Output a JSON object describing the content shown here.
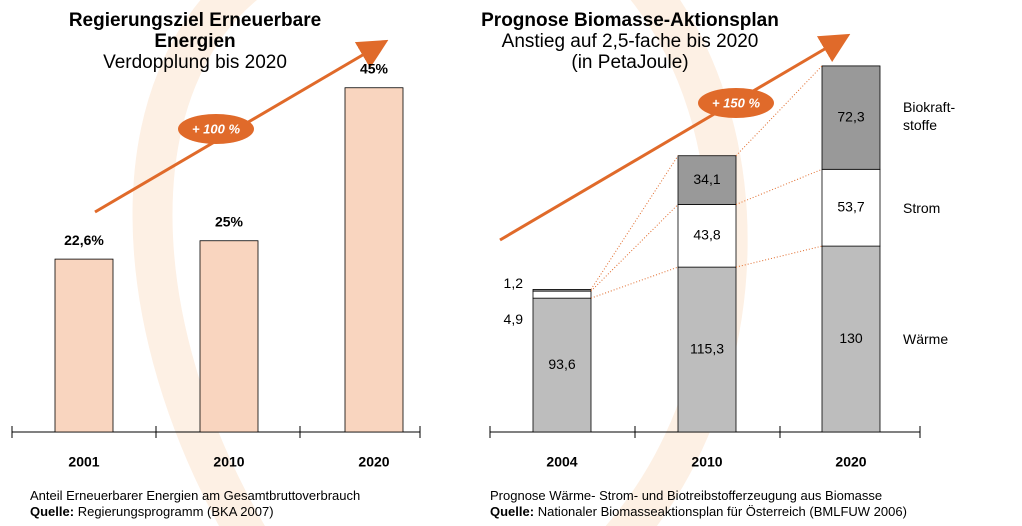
{
  "chart_data": [
    {
      "type": "bar",
      "title": "Regierungsziel Erneuerbare Energien",
      "subtitle": "Verdopplung bis 2020",
      "categories": [
        "2001",
        "2010",
        "2020"
      ],
      "values": [
        22.6,
        25,
        45
      ],
      "value_labels": [
        "22,6%",
        "25%",
        "45%"
      ],
      "color": "#f9d5bf",
      "annotation": "+ 100 %",
      "footnote": "Anteil Erneuerbarer Energien am Gesamtbruttoverbrauch",
      "source_label": "Quelle:",
      "source": "Regierungsprogramm (BKA 2007)"
    },
    {
      "type": "stacked_bar",
      "title": "Prognose Biomasse-Aktionsplan",
      "subtitle": "Anstieg auf 2,5-fache bis 2020",
      "unit_label": "(in PetaJoule)",
      "categories": [
        "2004",
        "2010",
        "2020"
      ],
      "series": [
        {
          "name": "Wärme",
          "color": "#bdbdbd",
          "values": [
            93.6,
            115.3,
            130
          ],
          "value_labels": [
            "93,6",
            "115,3",
            "130"
          ]
        },
        {
          "name": "Strom",
          "color": "#ffffff",
          "values": [
            4.9,
            43.8,
            53.7
          ],
          "value_labels": [
            "4,9",
            "43,8",
            "53,7"
          ]
        },
        {
          "name": "Biokraft-stoffe",
          "color": "#999999",
          "values": [
            1.2,
            34.1,
            72.3
          ],
          "value_labels": [
            "1,2",
            "34,1",
            "72,3"
          ]
        }
      ],
      "annotation": "+ 150 %",
      "footnote": "Prognose Wärme- Strom- und Biotreibstofferzeugung aus Biomasse",
      "source_label": "Quelle:",
      "source": "Nationaler Biomasseaktionsplan für Österreich (BMLFUW 2006)"
    }
  ]
}
